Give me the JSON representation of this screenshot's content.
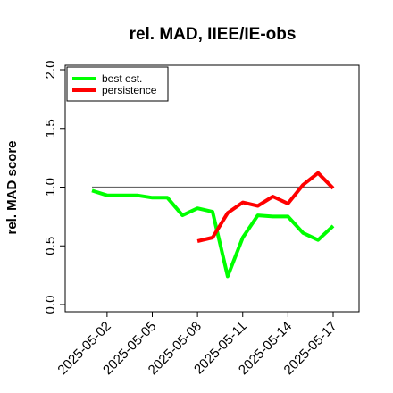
{
  "chart_data": {
    "type": "line",
    "title": "rel. MAD, IIEE/IE-obs",
    "xlabel": "",
    "ylabel": "rel. MAD score",
    "ylim": [
      0,
      2
    ],
    "yticks": [
      "0.0",
      "0.5",
      "1.0",
      "1.5",
      "2.0"
    ],
    "x": [
      "2025-05-01",
      "2025-05-02",
      "2025-05-03",
      "2025-05-04",
      "2025-05-05",
      "2025-05-06",
      "2025-05-07",
      "2025-05-08",
      "2025-05-09",
      "2025-05-10",
      "2025-05-11",
      "2025-05-12",
      "2025-05-13",
      "2025-05-14",
      "2025-05-15",
      "2025-05-16",
      "2025-05-17"
    ],
    "xticks": [
      "2025-05-02",
      "2025-05-05",
      "2025-05-08",
      "2025-05-11",
      "2025-05-14",
      "2025-05-17"
    ],
    "reference_line": 1.0,
    "legend_position": "top-left",
    "grid": false,
    "series": [
      {
        "name": "best est.",
        "color": "#00ff00",
        "values": [
          0.97,
          0.93,
          0.93,
          0.93,
          0.91,
          0.91,
          0.76,
          0.82,
          0.79,
          0.24,
          0.57,
          0.76,
          0.75,
          0.75,
          0.61,
          0.55,
          0.67
        ]
      },
      {
        "name": "persistence",
        "color": "#ff0000",
        "values": [
          null,
          null,
          null,
          null,
          null,
          null,
          null,
          0.54,
          0.57,
          0.78,
          0.87,
          0.84,
          0.92,
          0.86,
          1.02,
          1.12,
          0.99
        ]
      }
    ]
  }
}
